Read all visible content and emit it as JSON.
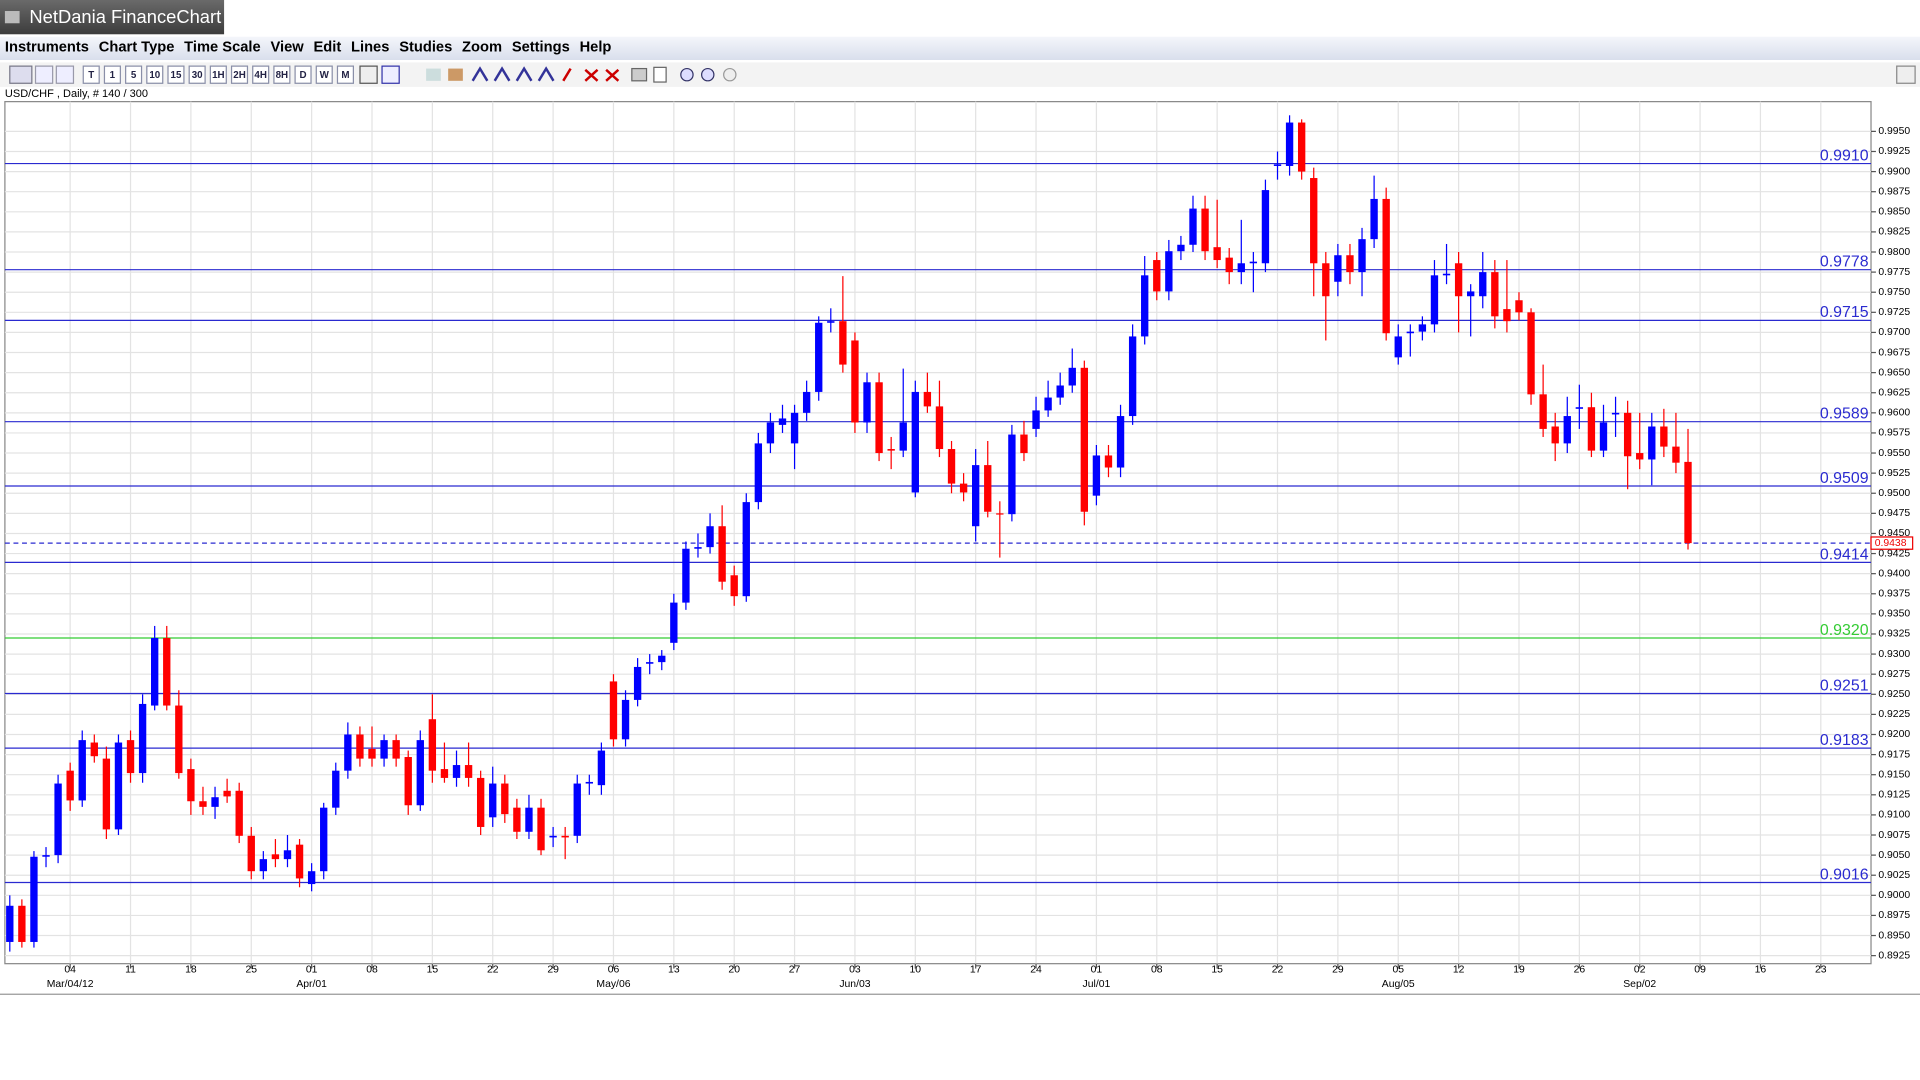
{
  "window": {
    "title": "NetDania FinanceChart"
  },
  "menu": [
    "Instruments",
    "Chart Type",
    "Time Scale",
    "View",
    "Edit",
    "Lines",
    "Studies",
    "Zoom",
    "Settings",
    "Help"
  ],
  "toolbar": {
    "buttons": [
      "T",
      "1",
      "5",
      "10",
      "15",
      "30",
      "1H",
      "2H",
      "4H",
      "8H",
      "D",
      "W",
      "M"
    ]
  },
  "chart_data": {
    "type": "candlestick",
    "title": "USD/CHF , Daily, # 140 / 300",
    "ylim": [
      0.8915,
      0.9987
    ],
    "yticks": [
      0.8925,
      {
        "value": 0.895,
        "label": "0.8950"
      },
      0.8975,
      {
        "value": 0.9,
        "label": "0.9000"
      },
      0.9025,
      {
        "value": 0.905,
        "label": "0.9050"
      },
      0.9075,
      {
        "value": 0.91,
        "label": "0.9100"
      },
      0.9125,
      {
        "value": 0.915,
        "label": "0.9150"
      },
      0.9175,
      {
        "value": 0.92,
        "label": "0.9200"
      },
      0.9225,
      {
        "value": 0.925,
        "label": "0.9250"
      },
      0.9275,
      {
        "value": 0.93,
        "label": "0.9300"
      },
      0.9325,
      {
        "value": 0.935,
        "label": "0.9350"
      },
      0.9375,
      {
        "value": 0.94,
        "label": "0.9400"
      },
      0.9425,
      {
        "value": 0.945,
        "label": "0.9450"
      },
      0.9475,
      {
        "value": 0.95,
        "label": "0.9500"
      },
      0.9525,
      {
        "value": 0.955,
        "label": "0.9550"
      },
      0.9575,
      {
        "value": 0.96,
        "label": "0.9600"
      },
      0.9625,
      {
        "value": 0.965,
        "label": "0.9650"
      },
      0.9675,
      {
        "value": 0.97,
        "label": "0.9700"
      },
      0.9725,
      {
        "value": 0.975,
        "label": "0.9750"
      },
      0.9775,
      {
        "value": 0.98,
        "label": "0.9800"
      },
      0.9825,
      {
        "value": 0.985,
        "label": "0.9850"
      },
      0.9875,
      {
        "value": 0.99,
        "label": "0.9900"
      },
      0.9925,
      {
        "value": 0.995,
        "label": "0.9950"
      }
    ],
    "grid": true,
    "xtick_labels": [
      "04",
      "11",
      "18",
      "25",
      "01",
      "08",
      "15",
      "22",
      "29",
      "06",
      "13",
      "20",
      "27",
      "03",
      "10",
      "17",
      "24",
      "01",
      "08",
      "15",
      "22",
      "29",
      "05",
      "12",
      "19",
      "26",
      "02",
      "09",
      "16",
      "23"
    ],
    "month_labels": [
      "Mar/04/12",
      null,
      null,
      null,
      "Apr/01",
      null,
      null,
      null,
      null,
      "May/06",
      null,
      null,
      null,
      "Jun/03",
      null,
      null,
      null,
      "Jul/01",
      null,
      null,
      null,
      null,
      "Aug/05",
      null,
      null,
      null,
      "Sep/02",
      null,
      null,
      null
    ],
    "up_color": "#0000ff",
    "down_color": "#ff0000",
    "levels": [
      {
        "value": 0.991,
        "label": "0.9910",
        "color": "#2a2ad0"
      },
      {
        "value": 0.9778,
        "label": "0.9778",
        "color": "#2a2ad0"
      },
      {
        "value": 0.9715,
        "label": "0.9715",
        "color": "#2a2ad0"
      },
      {
        "value": 0.9589,
        "label": "0.9589",
        "color": "#2a2ad0"
      },
      {
        "value": 0.9509,
        "label": "0.9509",
        "color": "#2a2ad0"
      },
      {
        "value": 0.9414,
        "label": "0.9414",
        "color": "#2a2ad0"
      },
      {
        "value": 0.932,
        "label": "0.9320",
        "color": "#33cc33"
      },
      {
        "value": 0.9251,
        "label": "0.9251",
        "color": "#2a2ad0"
      },
      {
        "value": 0.9183,
        "label": "0.9183",
        "color": "#2a2ad0"
      },
      {
        "value": 0.9016,
        "label": "0.9016",
        "color": "#2a2ad0"
      }
    ],
    "last_price": 0.9438,
    "ohlc": [
      [
        0.8942,
        0.9,
        0.893,
        0.8987
      ],
      [
        0.8987,
        0.8995,
        0.8935,
        0.8942
      ],
      [
        0.8942,
        0.9055,
        0.8935,
        0.9048
      ],
      [
        0.9048,
        0.906,
        0.9035,
        0.905
      ],
      [
        0.905,
        0.915,
        0.904,
        0.9139
      ],
      [
        0.9155,
        0.9165,
        0.9105,
        0.9118
      ],
      [
        0.9118,
        0.9205,
        0.911,
        0.9193
      ],
      [
        0.919,
        0.92,
        0.9165,
        0.9173
      ],
      [
        0.917,
        0.9185,
        0.907,
        0.9082
      ],
      [
        0.9082,
        0.92,
        0.9075,
        0.919
      ],
      [
        0.9193,
        0.9205,
        0.914,
        0.9152
      ],
      [
        0.9152,
        0.925,
        0.914,
        0.9238
      ],
      [
        0.9236,
        0.9335,
        0.923,
        0.932
      ],
      [
        0.932,
        0.9335,
        0.923,
        0.9236
      ],
      [
        0.9236,
        0.9255,
        0.9145,
        0.9152
      ],
      [
        0.9157,
        0.917,
        0.91,
        0.9117
      ],
      [
        0.9117,
        0.9135,
        0.91,
        0.911
      ],
      [
        0.911,
        0.9135,
        0.9095,
        0.9122
      ],
      [
        0.913,
        0.9145,
        0.9115,
        0.9123
      ],
      [
        0.913,
        0.914,
        0.9065,
        0.9074
      ],
      [
        0.9074,
        0.9085,
        0.902,
        0.903
      ],
      [
        0.903,
        0.9055,
        0.902,
        0.9045
      ],
      [
        0.9051,
        0.907,
        0.9035,
        0.9045
      ],
      [
        0.9045,
        0.9075,
        0.9035,
        0.9056
      ],
      [
        0.9063,
        0.907,
        0.901,
        0.9021
      ],
      [
        0.9014,
        0.904,
        0.9005,
        0.903
      ],
      [
        0.903,
        0.9115,
        0.902,
        0.9109
      ],
      [
        0.9109,
        0.9165,
        0.91,
        0.9155
      ],
      [
        0.9155,
        0.9215,
        0.9145,
        0.92
      ],
      [
        0.92,
        0.921,
        0.916,
        0.917
      ],
      [
        0.9182,
        0.921,
        0.916,
        0.917
      ],
      [
        0.917,
        0.92,
        0.916,
        0.9193
      ],
      [
        0.9193,
        0.92,
        0.916,
        0.917
      ],
      [
        0.9172,
        0.918,
        0.91,
        0.9112
      ],
      [
        0.9112,
        0.9205,
        0.9105,
        0.9193
      ],
      [
        0.9219,
        0.925,
        0.914,
        0.9155
      ],
      [
        0.9157,
        0.919,
        0.914,
        0.9146
      ],
      [
        0.9146,
        0.918,
        0.9135,
        0.9162
      ],
      [
        0.9162,
        0.919,
        0.9135,
        0.9146
      ],
      [
        0.9146,
        0.9155,
        0.9075,
        0.9085
      ],
      [
        0.9097,
        0.916,
        0.9085,
        0.9139
      ],
      [
        0.9139,
        0.915,
        0.909,
        0.9101
      ],
      [
        0.9109,
        0.912,
        0.907,
        0.9079
      ],
      [
        0.9079,
        0.9125,
        0.907,
        0.9109
      ],
      [
        0.9109,
        0.912,
        0.905,
        0.9056
      ],
      [
        0.9072,
        0.9085,
        0.906,
        0.9074
      ],
      [
        0.9074,
        0.9085,
        0.9045,
        0.9072
      ],
      [
        0.9074,
        0.915,
        0.9065,
        0.9139
      ],
      [
        0.9139,
        0.915,
        0.9125,
        0.9141
      ],
      [
        0.9137,
        0.919,
        0.9125,
        0.918
      ],
      [
        0.9266,
        0.9275,
        0.9185,
        0.9194
      ],
      [
        0.9194,
        0.9255,
        0.9185,
        0.9243
      ],
      [
        0.9243,
        0.9295,
        0.9235,
        0.9284
      ],
      [
        0.9288,
        0.93,
        0.9275,
        0.929
      ],
      [
        0.929,
        0.9305,
        0.928,
        0.9298
      ],
      [
        0.9314,
        0.9375,
        0.9305,
        0.9364
      ],
      [
        0.9364,
        0.944,
        0.9355,
        0.9431
      ],
      [
        0.9431,
        0.945,
        0.942,
        0.9433
      ],
      [
        0.9433,
        0.9475,
        0.9425,
        0.9459
      ],
      [
        0.9459,
        0.9485,
        0.938,
        0.939
      ],
      [
        0.9398,
        0.941,
        0.936,
        0.9372
      ],
      [
        0.9372,
        0.95,
        0.9365,
        0.9489
      ],
      [
        0.9489,
        0.9575,
        0.948,
        0.9562
      ],
      [
        0.9562,
        0.96,
        0.955,
        0.9588
      ],
      [
        0.9585,
        0.961,
        0.9575,
        0.9593
      ],
      [
        0.9562,
        0.961,
        0.953,
        0.96
      ],
      [
        0.96,
        0.964,
        0.959,
        0.9626
      ],
      [
        0.9626,
        0.972,
        0.9615,
        0.9712
      ],
      [
        0.9712,
        0.973,
        0.97,
        0.9714
      ],
      [
        0.9714,
        0.977,
        0.965,
        0.966
      ],
      [
        0.969,
        0.97,
        0.9575,
        0.9588
      ],
      [
        0.9588,
        0.965,
        0.9575,
        0.9638
      ],
      [
        0.9638,
        0.965,
        0.954,
        0.955
      ],
      [
        0.9555,
        0.957,
        0.953,
        0.9553
      ],
      [
        0.9553,
        0.9655,
        0.9545,
        0.9588
      ],
      [
        0.9501,
        0.964,
        0.9495,
        0.9626
      ],
      [
        0.9626,
        0.965,
        0.96,
        0.9608
      ],
      [
        0.9608,
        0.964,
        0.9545,
        0.9555
      ],
      [
        0.9555,
        0.9565,
        0.95,
        0.9512
      ],
      [
        0.9512,
        0.9525,
        0.949,
        0.9501
      ],
      [
        0.9459,
        0.9555,
        0.944,
        0.9535
      ],
      [
        0.9535,
        0.9565,
        0.947,
        0.9477
      ],
      [
        0.9475,
        0.949,
        0.942,
        0.9474
      ],
      [
        0.9474,
        0.9585,
        0.9465,
        0.9573
      ],
      [
        0.9573,
        0.959,
        0.954,
        0.955
      ],
      [
        0.958,
        0.962,
        0.957,
        0.9603
      ],
      [
        0.9603,
        0.964,
        0.9595,
        0.9619
      ],
      [
        0.9619,
        0.965,
        0.961,
        0.9634
      ],
      [
        0.9634,
        0.968,
        0.9625,
        0.9656
      ],
      [
        0.9656,
        0.9665,
        0.946,
        0.9477
      ],
      [
        0.9497,
        0.956,
        0.9485,
        0.9547
      ],
      [
        0.9547,
        0.956,
        0.952,
        0.9532
      ],
      [
        0.9532,
        0.961,
        0.952,
        0.9596
      ],
      [
        0.9596,
        0.971,
        0.9585,
        0.9695
      ],
      [
        0.9695,
        0.9795,
        0.9685,
        0.9771
      ],
      [
        0.979,
        0.98,
        0.974,
        0.9751
      ],
      [
        0.9751,
        0.9815,
        0.974,
        0.9801
      ],
      [
        0.9801,
        0.982,
        0.979,
        0.9809
      ],
      [
        0.9809,
        0.987,
        0.98,
        0.9854
      ],
      [
        0.9854,
        0.987,
        0.979,
        0.9801
      ],
      [
        0.9806,
        0.9865,
        0.978,
        0.979
      ],
      [
        0.9793,
        0.9805,
        0.976,
        0.9775
      ],
      [
        0.9775,
        0.984,
        0.976,
        0.9786
      ],
      [
        0.9786,
        0.98,
        0.975,
        0.9788
      ],
      [
        0.9786,
        0.989,
        0.9775,
        0.9877
      ],
      [
        0.9907,
        0.9925,
        0.989,
        0.9909
      ],
      [
        0.9907,
        0.997,
        0.9895,
        0.9961
      ],
      [
        0.9961,
        0.9965,
        0.989,
        0.99
      ],
      [
        0.9892,
        0.9905,
        0.9745,
        0.9786
      ],
      [
        0.9786,
        0.98,
        0.969,
        0.9745
      ],
      [
        0.9763,
        0.981,
        0.9745,
        0.9796
      ],
      [
        0.9796,
        0.981,
        0.976,
        0.9775
      ],
      [
        0.9775,
        0.983,
        0.9745,
        0.9816
      ],
      [
        0.9816,
        0.9895,
        0.9805,
        0.9866
      ],
      [
        0.9866,
        0.988,
        0.969,
        0.9699
      ],
      [
        0.9669,
        0.971,
        0.966,
        0.9695
      ],
      [
        0.9699,
        0.971,
        0.967,
        0.9701
      ],
      [
        0.9701,
        0.972,
        0.969,
        0.971
      ],
      [
        0.971,
        0.979,
        0.97,
        0.9771
      ],
      [
        0.9771,
        0.981,
        0.976,
        0.9773
      ],
      [
        0.9786,
        0.98,
        0.97,
        0.9745
      ],
      [
        0.9745,
        0.976,
        0.9695,
        0.9751
      ],
      [
        0.9745,
        0.98,
        0.973,
        0.9775
      ],
      [
        0.9775,
        0.979,
        0.9705,
        0.972
      ],
      [
        0.9729,
        0.979,
        0.97,
        0.9714
      ],
      [
        0.974,
        0.975,
        0.9715,
        0.9725
      ],
      [
        0.9725,
        0.973,
        0.961,
        0.9623
      ],
      [
        0.9623,
        0.966,
        0.957,
        0.958
      ],
      [
        0.9583,
        0.96,
        0.954,
        0.9562
      ],
      [
        0.9562,
        0.962,
        0.955,
        0.9596
      ],
      [
        0.9605,
        0.9635,
        0.958,
        0.9607
      ],
      [
        0.9607,
        0.9625,
        0.9545,
        0.9553
      ],
      [
        0.9553,
        0.961,
        0.9545,
        0.9588
      ],
      [
        0.9598,
        0.962,
        0.957,
        0.96
      ],
      [
        0.96,
        0.9615,
        0.9505,
        0.9546
      ],
      [
        0.955,
        0.96,
        0.953,
        0.9542
      ],
      [
        0.9542,
        0.96,
        0.951,
        0.9583
      ],
      [
        0.9583,
        0.9605,
        0.9545,
        0.9558
      ],
      [
        0.9558,
        0.96,
        0.9525,
        0.9538
      ],
      [
        0.9539,
        0.958,
        0.943,
        0.9438
      ]
    ]
  }
}
